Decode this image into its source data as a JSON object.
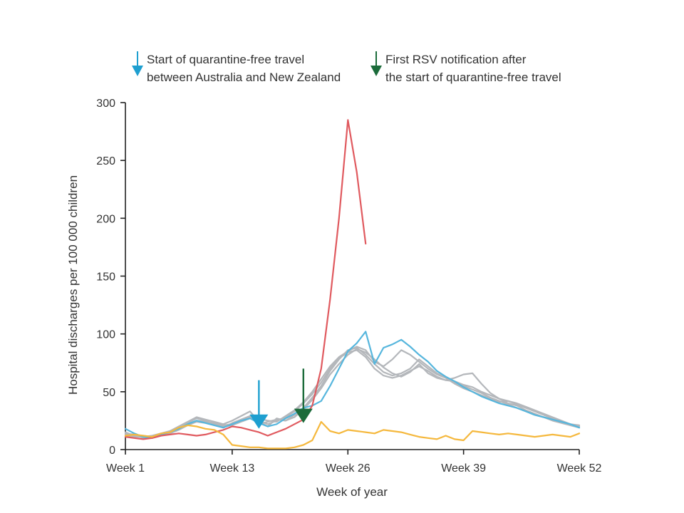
{
  "chart_data": {
    "type": "line",
    "xlabel": "Week of year",
    "ylabel": "Hospital discharges per 100 000 children",
    "xlim": [
      1,
      52
    ],
    "ylim": [
      0,
      300
    ],
    "x_ticks": [
      1,
      13,
      26,
      39,
      52
    ],
    "x_tick_labels": [
      "Week 1",
      "Week 13",
      "Week 26",
      "Week 39",
      "Week 52"
    ],
    "y_ticks": [
      0,
      50,
      100,
      150,
      200,
      250,
      300
    ],
    "y_tick_labels": [
      "0",
      "50",
      "100",
      "150",
      "200",
      "250",
      "300"
    ],
    "grid": false,
    "legend": [
      {
        "lines": [
          "Start of quarantine-free travel",
          "between Australia and New Zealand"
        ],
        "color": "#1e9fd0"
      },
      {
        "lines": [
          "First RSV notification after",
          "the start of quarantine-free travel"
        ],
        "color": "#1b6b3a"
      }
    ],
    "annotations": [
      {
        "type": "arrow",
        "x": 16,
        "y_tip": 18,
        "y_tail": 60,
        "color": "#1e9fd0"
      },
      {
        "type": "arrow",
        "x": 21,
        "y_tip": 23,
        "y_tail": 70,
        "color": "#1b6b3a"
      }
    ],
    "series": [
      {
        "color": "#b4b7bb",
        "values": [
          15,
          12,
          11,
          12,
          14,
          16,
          20,
          24,
          28,
          26,
          24,
          22,
          25,
          29,
          33,
          24,
          20,
          27,
          25,
          28,
          35,
          43,
          53,
          65,
          74,
          82,
          87,
          84,
          78,
          71,
          66,
          63,
          67,
          74,
          66,
          62,
          60,
          59,
          56,
          54,
          50,
          47,
          44,
          40,
          38,
          34,
          31,
          28,
          26,
          24,
          22,
          20
        ]
      },
      {
        "color": "#b4b7bb",
        "values": [
          14,
          13,
          10,
          11,
          13,
          15,
          18,
          22,
          25,
          24,
          23,
          21,
          22,
          25,
          28,
          22,
          24,
          26,
          25,
          30,
          36,
          45,
          55,
          68,
          78,
          86,
          88,
          82,
          74,
          67,
          64,
          66,
          70,
          78,
          72,
          66,
          62,
          57,
          53,
          50,
          47,
          44,
          41,
          42,
          39,
          36,
          33,
          30,
          27,
          24,
          21,
          19
        ]
      },
      {
        "color": "#b4b7bb",
        "values": [
          12,
          11,
          11,
          10,
          12,
          14,
          17,
          21,
          24,
          23,
          21,
          19,
          23,
          26,
          29,
          27,
          25,
          24,
          29,
          34,
          41,
          50,
          61,
          72,
          80,
          85,
          89,
          86,
          76,
          72,
          78,
          86,
          82,
          76,
          70,
          65,
          62,
          58,
          55,
          52,
          49,
          45,
          42,
          39,
          36,
          33,
          30,
          28,
          25,
          23,
          21,
          20
        ]
      },
      {
        "color": "#b4b7bb",
        "values": [
          13,
          12,
          12,
          11,
          13,
          16,
          19,
          23,
          27,
          25,
          22,
          20,
          21,
          24,
          27,
          25,
          22,
          25,
          28,
          33,
          40,
          48,
          58,
          70,
          79,
          84,
          86,
          80,
          70,
          64,
          62,
          64,
          68,
          72,
          68,
          63,
          60,
          62,
          65,
          66,
          57,
          49,
          44,
          42,
          40,
          37,
          34,
          31,
          28,
          25,
          22,
          21
        ]
      },
      {
        "color": "#56b6dd",
        "values": [
          18,
          14,
          11,
          10,
          13,
          15,
          18,
          22,
          25,
          23,
          21,
          19,
          22,
          25,
          27,
          23,
          20,
          22,
          27,
          31,
          36,
          38,
          42,
          55,
          70,
          85,
          92,
          102,
          74,
          88,
          91,
          95,
          89,
          82,
          76,
          68,
          63,
          59,
          54,
          50,
          46,
          43,
          40,
          38,
          36,
          33,
          30,
          28,
          26,
          24,
          22,
          19
        ]
      },
      {
        "color": "#e05a5f",
        "values": [
          11,
          10,
          9,
          10,
          12,
          13,
          14,
          13,
          12,
          13,
          15,
          17,
          20,
          19,
          17,
          15,
          12,
          15,
          18,
          22,
          26,
          38,
          70,
          130,
          200,
          285,
          240,
          178
        ]
      },
      {
        "color": "#f5b83d",
        "values": [
          12,
          13,
          12,
          11,
          14,
          15,
          19,
          21,
          20,
          18,
          17,
          13,
          4,
          3,
          2,
          2,
          1,
          1,
          1,
          2,
          4,
          8,
          24,
          16,
          14,
          17,
          16,
          15,
          14,
          17,
          16,
          15,
          13,
          11,
          10,
          9,
          12,
          9,
          8,
          16,
          15,
          14,
          13,
          14,
          13,
          12,
          11,
          12,
          13,
          12,
          11,
          14
        ]
      }
    ]
  }
}
